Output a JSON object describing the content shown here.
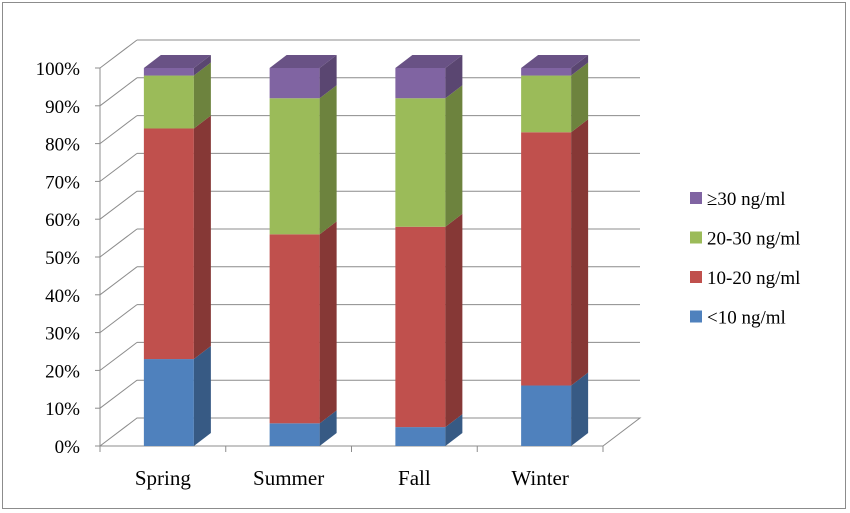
{
  "chart_data": {
    "type": "bar",
    "stacked": true,
    "percent": true,
    "three_d": true,
    "title": "",
    "xlabel": "",
    "ylabel": "",
    "ylim": [
      0,
      100
    ],
    "y_ticks": [
      "0%",
      "10%",
      "20%",
      "30%",
      "40%",
      "50%",
      "60%",
      "70%",
      "80%",
      "90%",
      "100%"
    ],
    "categories": [
      "Spring",
      "Summer",
      "Fall",
      "Winter"
    ],
    "series": [
      {
        "name": "<10 ng/ml",
        "color": "#4f81bd",
        "values": [
          23,
          6,
          5,
          16
        ]
      },
      {
        "name": "10-20 ng/ml",
        "color": "#c0504d",
        "values": [
          61,
          50,
          53,
          67
        ]
      },
      {
        "name": "20-30 ng/ml",
        "color": "#9bbb59",
        "values": [
          14,
          36,
          34,
          15
        ]
      },
      {
        "name": "≥30 ng/ml",
        "color": "#8064a2",
        "values": [
          2,
          8,
          8,
          2
        ]
      }
    ],
    "legend_order": [
      "≥30 ng/ml",
      "20-30 ng/ml",
      "10-20 ng/ml",
      "<10 ng/ml"
    ],
    "legend_position": "right",
    "grid": true
  }
}
